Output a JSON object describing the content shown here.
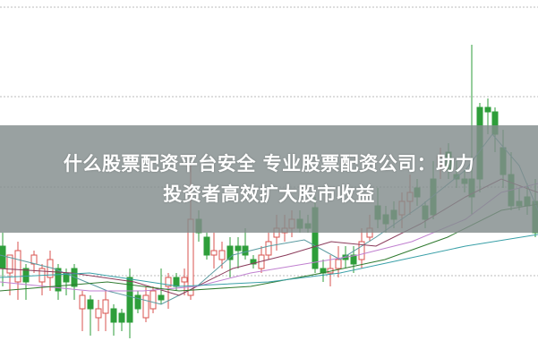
{
  "article": {
    "title_line1": "什么股票配资平台安全 专业股票配资公司：助力",
    "title_line2": "投资者高效扩大股市收益"
  },
  "colors": {
    "up_candle": "#d9534f",
    "down_candle": "#2e9e3a",
    "banner": "#828c8c",
    "ma_lines": [
      "#5a9aa0",
      "#8a3a5a",
      "#c080d0",
      "#2f7a2f",
      "#3aa0a8"
    ]
  },
  "icons": {
    "chart": "candlestick-chart-image"
  }
}
